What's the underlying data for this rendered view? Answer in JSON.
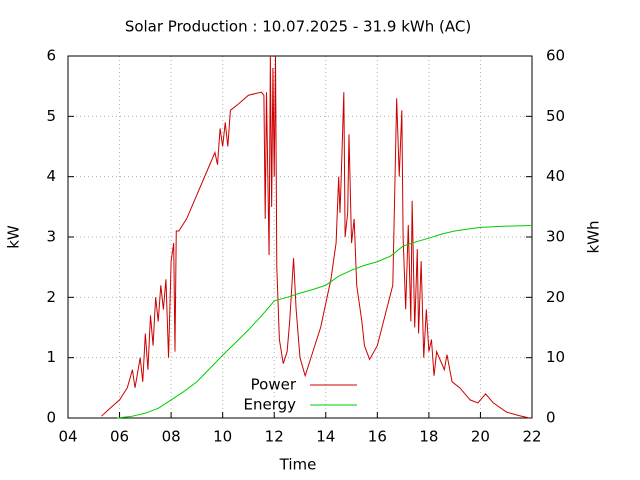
{
  "chart_data": {
    "type": "line",
    "title": "Solar Production : 10.07.2025 - 31.9 kWh (AC)",
    "xlabel": "Time",
    "ylabel": "kW",
    "y2label": "kWh",
    "xlim": [
      4,
      22
    ],
    "xticks": [
      {
        "value": 4,
        "label": "04"
      },
      {
        "value": 6,
        "label": "06"
      },
      {
        "value": 8,
        "label": "08"
      },
      10,
      12,
      14,
      16,
      18,
      20,
      22
    ],
    "ylim": [
      0,
      6
    ],
    "yticks": [
      0,
      1,
      2,
      3,
      4,
      5,
      6
    ],
    "y2lim": [
      0,
      60
    ],
    "y2ticks": [
      0,
      10,
      20,
      30,
      40,
      50,
      60
    ],
    "grid": true,
    "series": [
      {
        "name": "Power",
        "color": "#cc0000",
        "x": [
          5.3,
          5.6,
          6.0,
          6.3,
          6.5,
          6.6,
          6.8,
          6.9,
          7.0,
          7.1,
          7.2,
          7.3,
          7.4,
          7.5,
          7.6,
          7.7,
          7.8,
          7.9,
          8.0,
          8.1,
          8.15,
          8.2,
          8.3,
          8.6,
          9.0,
          9.4,
          9.7,
          9.8,
          9.9,
          10.0,
          10.1,
          10.2,
          10.3,
          10.6,
          11.0,
          11.5,
          11.6,
          11.65,
          11.7,
          11.8,
          11.85,
          11.9,
          11.95,
          12.0,
          12.05,
          12.1,
          12.2,
          12.35,
          12.5,
          12.6,
          12.75,
          12.85,
          13.0,
          13.2,
          13.5,
          13.8,
          14.0,
          14.2,
          14.4,
          14.5,
          14.55,
          14.6,
          14.7,
          14.75,
          14.85,
          14.9,
          15.0,
          15.1,
          15.2,
          15.4,
          15.5,
          15.7,
          16.0,
          16.3,
          16.6,
          16.75,
          16.85,
          16.95,
          17.0,
          17.1,
          17.2,
          17.3,
          17.35,
          17.45,
          17.55,
          17.6,
          17.7,
          17.8,
          17.9,
          18.0,
          18.1,
          18.2,
          18.3,
          18.6,
          18.7,
          18.9,
          19.2,
          19.6,
          19.9,
          20.2,
          20.5,
          21.0,
          21.5,
          21.9
        ],
        "values": [
          0.03,
          0.15,
          0.3,
          0.5,
          0.8,
          0.5,
          1.0,
          0.6,
          1.4,
          0.8,
          1.7,
          1.2,
          2.0,
          1.6,
          2.2,
          1.8,
          2.3,
          1.0,
          2.6,
          2.9,
          1.1,
          3.1,
          3.1,
          3.3,
          3.7,
          4.1,
          4.4,
          4.2,
          4.8,
          4.5,
          4.9,
          4.5,
          5.1,
          5.2,
          5.35,
          5.4,
          5.35,
          3.3,
          5.4,
          2.7,
          6.0,
          3.5,
          5.8,
          4.0,
          6.0,
          2.5,
          1.3,
          0.9,
          1.1,
          1.6,
          2.65,
          1.8,
          1.0,
          0.7,
          1.1,
          1.5,
          1.9,
          2.3,
          2.9,
          4.0,
          3.4,
          4.0,
          5.4,
          3.0,
          3.4,
          4.7,
          2.9,
          3.3,
          2.2,
          1.6,
          1.2,
          0.97,
          1.2,
          1.7,
          2.2,
          5.3,
          4.0,
          5.1,
          3.0,
          1.8,
          3.2,
          1.6,
          3.6,
          1.5,
          2.8,
          1.4,
          2.6,
          1.0,
          1.8,
          1.1,
          1.3,
          0.7,
          1.1,
          0.8,
          1.05,
          0.6,
          0.5,
          0.3,
          0.25,
          0.4,
          0.25,
          0.1,
          0.04,
          0
        ]
      },
      {
        "name": "Energy",
        "color": "#00cc00",
        "axis": "y2",
        "x": [
          5.9,
          6.5,
          7.0,
          7.5,
          8.0,
          8.5,
          9.0,
          9.5,
          10.0,
          10.5,
          11.0,
          11.5,
          12.0,
          12.5,
          13.0,
          13.5,
          14.0,
          14.5,
          15.0,
          15.5,
          16.0,
          16.5,
          17.0,
          17.5,
          18.0,
          18.5,
          19.0,
          19.5,
          20.0,
          21.0,
          22.0
        ],
        "values": [
          0,
          0.3,
          0.8,
          1.6,
          3.0,
          4.4,
          6.0,
          8.2,
          10.4,
          12.5,
          14.6,
          16.9,
          19.4,
          20.0,
          20.7,
          21.3,
          22.0,
          23.5,
          24.5,
          25.3,
          25.9,
          26.8,
          28.5,
          29.2,
          29.8,
          30.5,
          31.0,
          31.3,
          31.6,
          31.8,
          31.9
        ]
      }
    ]
  }
}
